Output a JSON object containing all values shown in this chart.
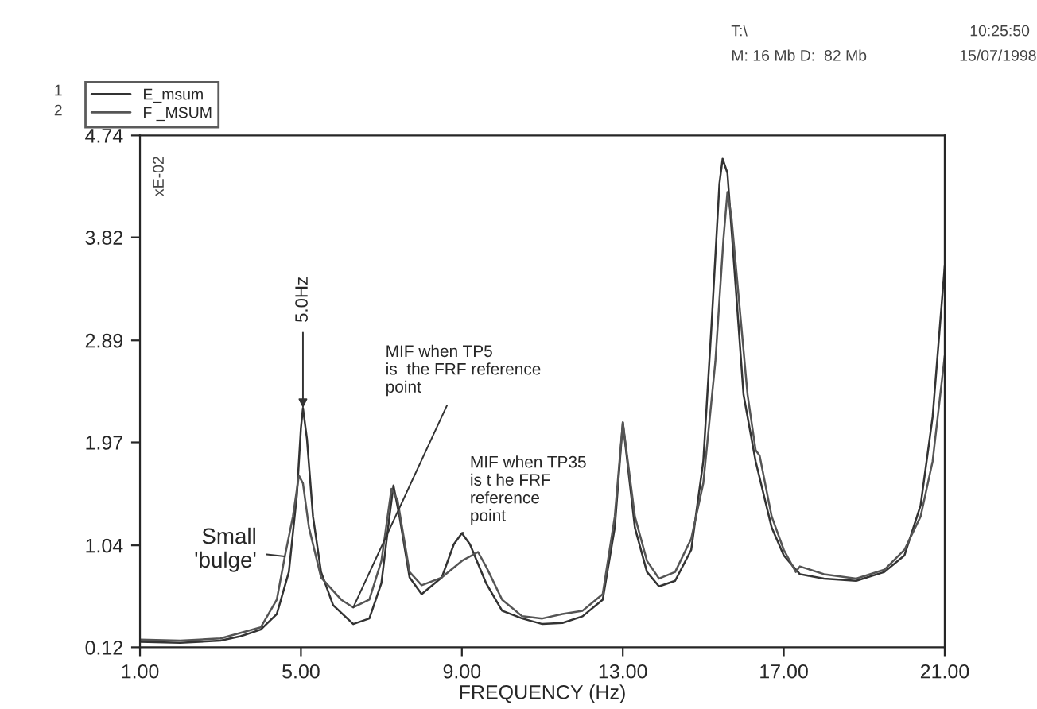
{
  "chart_data": {
    "type": "line",
    "xlabel": "FREQUENCY (Hz)",
    "xlim": [
      1,
      21
    ],
    "ylim": [
      0.12,
      4.74
    ],
    "xticks": [
      {
        "value": 1,
        "label": "1.00"
      },
      {
        "value": 5,
        "label": "5.00"
      },
      {
        "value": 9,
        "label": "9.00"
      },
      {
        "value": 13,
        "label": "13.00"
      },
      {
        "value": 17,
        "label": "17.00"
      },
      {
        "value": 21,
        "label": "21.00"
      }
    ],
    "yticks": [
      0.12,
      1.04,
      1.97,
      2.89,
      3.82,
      4.74
    ],
    "grid": false,
    "legend": "top left",
    "marker": "none",
    "line_style": "solid",
    "series": [
      {
        "name": "E_msum",
        "color": "#333333",
        "x": [
          1.0,
          2.0,
          3.0,
          3.5,
          4.0,
          4.4,
          4.7,
          4.9,
          5.0,
          5.05,
          5.15,
          5.3,
          5.5,
          5.8,
          6.3,
          6.7,
          7.0,
          7.2,
          7.3,
          7.45,
          7.7,
          8.0,
          8.5,
          8.8,
          9.0,
          9.2,
          9.6,
          10.0,
          10.5,
          11.0,
          11.5,
          12.0,
          12.5,
          12.8,
          13.0,
          13.3,
          13.6,
          13.9,
          14.3,
          14.7,
          15.0,
          15.2,
          15.4,
          15.48,
          15.6,
          15.8,
          16.0,
          16.3,
          16.7,
          17.0,
          17.4,
          18.0,
          18.8,
          19.5,
          20.0,
          20.4,
          20.7,
          21.0
        ],
        "values": [
          0.17,
          0.16,
          0.18,
          0.22,
          0.28,
          0.42,
          0.8,
          1.5,
          2.1,
          2.28,
          2.0,
          1.3,
          0.8,
          0.5,
          0.33,
          0.38,
          0.7,
          1.3,
          1.58,
          1.3,
          0.75,
          0.6,
          0.75,
          1.05,
          1.15,
          1.05,
          0.7,
          0.45,
          0.38,
          0.33,
          0.34,
          0.4,
          0.55,
          1.2,
          2.15,
          1.2,
          0.8,
          0.67,
          0.72,
          1.0,
          1.8,
          3.0,
          4.3,
          4.53,
          4.4,
          3.4,
          2.4,
          1.8,
          1.2,
          0.95,
          0.78,
          0.74,
          0.72,
          0.8,
          0.95,
          1.4,
          2.2,
          3.56
        ]
      },
      {
        "name": "F _MSUM",
        "color": "#555555",
        "x": [
          1.0,
          2.0,
          3.0,
          3.5,
          4.0,
          4.4,
          4.6,
          4.8,
          4.95,
          5.05,
          5.2,
          5.5,
          6.0,
          6.3,
          6.7,
          7.0,
          7.25,
          7.4,
          7.7,
          8.0,
          8.5,
          9.0,
          9.4,
          9.6,
          10.0,
          10.5,
          11.0,
          11.5,
          12.0,
          12.5,
          12.8,
          13.0,
          13.3,
          13.6,
          13.9,
          14.3,
          14.7,
          15.0,
          15.3,
          15.5,
          15.6,
          15.7,
          15.9,
          16.1,
          16.3,
          16.4,
          16.7,
          17.0,
          17.3,
          17.4,
          18.0,
          18.8,
          19.5,
          20.0,
          20.4,
          20.7,
          21.0
        ],
        "values": [
          0.19,
          0.18,
          0.2,
          0.25,
          0.3,
          0.55,
          0.94,
          1.3,
          1.67,
          1.6,
          1.2,
          0.75,
          0.55,
          0.48,
          0.55,
          0.9,
          1.55,
          1.45,
          0.8,
          0.68,
          0.75,
          0.9,
          0.98,
          0.85,
          0.55,
          0.4,
          0.38,
          0.42,
          0.45,
          0.6,
          1.3,
          2.15,
          1.3,
          0.9,
          0.74,
          0.8,
          1.1,
          1.6,
          2.7,
          3.8,
          4.23,
          4.0,
          3.2,
          2.4,
          1.9,
          1.85,
          1.3,
          1.0,
          0.8,
          0.85,
          0.78,
          0.74,
          0.82,
          1.0,
          1.3,
          1.8,
          2.75
        ]
      }
    ],
    "annotations": [
      {
        "text": "5.0Hz",
        "x": 5.05,
        "y": 2.28
      },
      {
        "text": "MIF when TP5\nis  the FRF reference\npoint",
        "x": 6.3,
        "y": 0.48
      },
      {
        "text": "MIF when TP35\nis t he FRF\nreference\npoint",
        "x": 9.0,
        "y": 1.15
      },
      {
        "text": "Small\n'bulge'",
        "x": 4.6,
        "y": 0.94
      },
      "1",
      "2",
      "xE-02",
      "T:\\",
      "M: 16 Mb D:  82 Mb",
      "10:25:50",
      "15/07/1998"
    ]
  }
}
